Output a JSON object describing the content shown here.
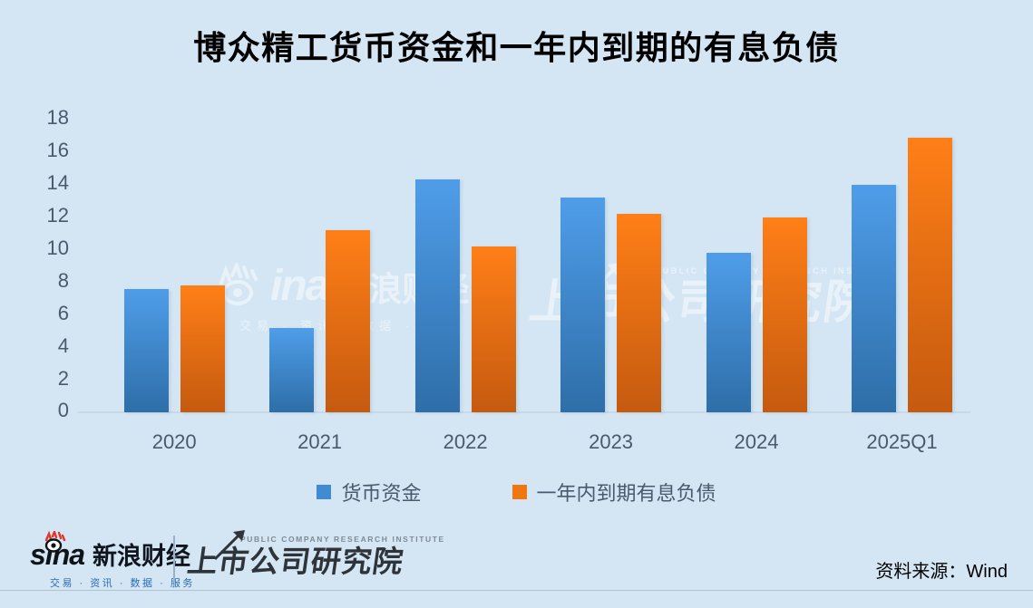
{
  "title": "博众精工货币资金和一年内到期的有息负债",
  "chart_data": {
    "type": "bar",
    "categories": [
      "2020",
      "2021",
      "2022",
      "2023",
      "2024",
      "2025Q1"
    ],
    "series": [
      {
        "name": "货币资金",
        "values": [
          7.6,
          5.2,
          14.3,
          13.2,
          9.8,
          14.0
        ],
        "color_top": "#4f9de9",
        "color_bottom": "#2e6ea8",
        "marker": "#418bd5"
      },
      {
        "name": "一年内到期有息负债",
        "values": [
          7.8,
          11.2,
          10.2,
          12.2,
          12.0,
          16.9
        ],
        "color_top": "#ff7f17",
        "color_bottom": "#c55a0f",
        "marker": "#f1760f"
      }
    ],
    "ylim": [
      0,
      18
    ],
    "ytick_step": 2,
    "yticks": [
      0,
      2,
      4,
      6,
      8,
      10,
      12,
      14,
      16,
      18
    ],
    "grid": false,
    "legend_position": "bottom"
  },
  "watermarks": {
    "sina_text": "ina",
    "sina_cn": "新浪财经",
    "sina_sub": "交易 · 资讯 · 数据 · 服务",
    "pcri_en": "PUBLIC COMPANY RESEARCH INSTITUTE",
    "pcri_cn": "上市公司研究院"
  },
  "footer": {
    "sina_logo_text": "sina",
    "sina_cn": "新浪财经",
    "sina_sub": "交易 · 资讯 · 数据 · 服务",
    "pcri_en": "PUBLIC COMPANY RESEARCH INSTITUTE",
    "pcri_cn": "上市公司研究院",
    "source": "资料来源：Wind"
  },
  "colors": {
    "background": "#d4e6f3",
    "axis_text": "#4a5a6e",
    "title_text": "#000000",
    "footer_sub_blue": "#2b6cb4",
    "sina_flame_red": "#e2342a"
  }
}
